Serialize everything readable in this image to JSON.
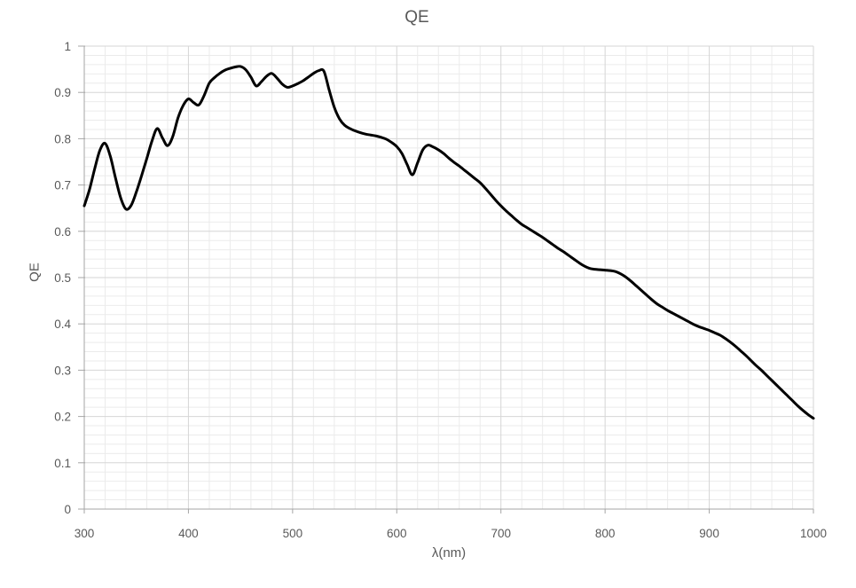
{
  "chart": {
    "title": "QE",
    "x_axis_label": "λ(nm)",
    "y_axis_label": "QE"
  },
  "colors": {
    "background": "#ffffff",
    "line": "#000000",
    "major_grid": "#d6d6d6",
    "minor_grid": "#ebebeb",
    "axis": "#a6a6a6",
    "text": "#595959"
  },
  "chart_data": {
    "type": "line",
    "title": "QE",
    "xlabel": "λ(nm)",
    "ylabel": "QE",
    "xlim": [
      300,
      1000
    ],
    "ylim": [
      0,
      1
    ],
    "grid": "major+minor",
    "legend": "none",
    "x_major_tick_values": [
      300,
      400,
      500,
      600,
      700,
      800,
      900,
      1000
    ],
    "x_major_tick_labels": [
      "300",
      "400",
      "500",
      "600",
      "700",
      "800",
      "900",
      "1000"
    ],
    "x_minor_step": 20,
    "y_major_tick_values": [
      0,
      0.1,
      0.2,
      0.3,
      0.4,
      0.5,
      0.6,
      0.7,
      0.8,
      0.9,
      1
    ],
    "y_major_tick_labels": [
      "0",
      "0.1",
      "0.2",
      "0.3",
      "0.4",
      "0.5",
      "0.6",
      "0.7",
      "0.8",
      "0.9",
      "1"
    ],
    "y_minor_step": 0.02,
    "series": [
      {
        "name": "QE",
        "points": [
          [
            300,
            0.655
          ],
          [
            305,
            0.69
          ],
          [
            310,
            0.735
          ],
          [
            315,
            0.775
          ],
          [
            320,
            0.79
          ],
          [
            325,
            0.762
          ],
          [
            330,
            0.715
          ],
          [
            335,
            0.672
          ],
          [
            340,
            0.648
          ],
          [
            345,
            0.656
          ],
          [
            350,
            0.685
          ],
          [
            355,
            0.72
          ],
          [
            360,
            0.757
          ],
          [
            365,
            0.795
          ],
          [
            370,
            0.822
          ],
          [
            375,
            0.802
          ],
          [
            380,
            0.785
          ],
          [
            385,
            0.805
          ],
          [
            390,
            0.845
          ],
          [
            395,
            0.872
          ],
          [
            400,
            0.886
          ],
          [
            405,
            0.878
          ],
          [
            410,
            0.873
          ],
          [
            415,
            0.893
          ],
          [
            420,
            0.92
          ],
          [
            425,
            0.932
          ],
          [
            430,
            0.941
          ],
          [
            435,
            0.948
          ],
          [
            440,
            0.952
          ],
          [
            445,
            0.955
          ],
          [
            450,
            0.956
          ],
          [
            455,
            0.949
          ],
          [
            460,
            0.933
          ],
          [
            465,
            0.914
          ],
          [
            470,
            0.923
          ],
          [
            475,
            0.935
          ],
          [
            480,
            0.941
          ],
          [
            485,
            0.931
          ],
          [
            490,
            0.918
          ],
          [
            495,
            0.911
          ],
          [
            500,
            0.914
          ],
          [
            505,
            0.919
          ],
          [
            510,
            0.925
          ],
          [
            515,
            0.933
          ],
          [
            520,
            0.941
          ],
          [
            525,
            0.947
          ],
          [
            530,
            0.946
          ],
          [
            535,
            0.906
          ],
          [
            540,
            0.868
          ],
          [
            545,
            0.843
          ],
          [
            550,
            0.829
          ],
          [
            555,
            0.822
          ],
          [
            560,
            0.817
          ],
          [
            565,
            0.813
          ],
          [
            570,
            0.81
          ],
          [
            575,
            0.808
          ],
          [
            580,
            0.806
          ],
          [
            585,
            0.803
          ],
          [
            590,
            0.799
          ],
          [
            595,
            0.792
          ],
          [
            600,
            0.783
          ],
          [
            605,
            0.768
          ],
          [
            610,
            0.744
          ],
          [
            615,
            0.722
          ],
          [
            620,
            0.748
          ],
          [
            625,
            0.776
          ],
          [
            630,
            0.786
          ],
          [
            635,
            0.782
          ],
          [
            640,
            0.776
          ],
          [
            645,
            0.768
          ],
          [
            650,
            0.758
          ],
          [
            655,
            0.749
          ],
          [
            660,
            0.741
          ],
          [
            665,
            0.732
          ],
          [
            670,
            0.723
          ],
          [
            675,
            0.714
          ],
          [
            680,
            0.705
          ],
          [
            685,
            0.693
          ],
          [
            690,
            0.68
          ],
          [
            695,
            0.667
          ],
          [
            700,
            0.655
          ],
          [
            705,
            0.644
          ],
          [
            710,
            0.634
          ],
          [
            715,
            0.624
          ],
          [
            720,
            0.615
          ],
          [
            725,
            0.608
          ],
          [
            730,
            0.601
          ],
          [
            735,
            0.594
          ],
          [
            740,
            0.587
          ],
          [
            745,
            0.579
          ],
          [
            750,
            0.571
          ],
          [
            755,
            0.563
          ],
          [
            760,
            0.556
          ],
          [
            765,
            0.548
          ],
          [
            770,
            0.54
          ],
          [
            775,
            0.532
          ],
          [
            780,
            0.525
          ],
          [
            785,
            0.52
          ],
          [
            790,
            0.518
          ],
          [
            795,
            0.517
          ],
          [
            800,
            0.516
          ],
          [
            805,
            0.515
          ],
          [
            810,
            0.513
          ],
          [
            815,
            0.508
          ],
          [
            820,
            0.501
          ],
          [
            825,
            0.492
          ],
          [
            830,
            0.482
          ],
          [
            835,
            0.472
          ],
          [
            840,
            0.462
          ],
          [
            845,
            0.452
          ],
          [
            850,
            0.443
          ],
          [
            855,
            0.436
          ],
          [
            860,
            0.429
          ],
          [
            865,
            0.423
          ],
          [
            870,
            0.417
          ],
          [
            875,
            0.411
          ],
          [
            880,
            0.405
          ],
          [
            885,
            0.399
          ],
          [
            890,
            0.394
          ],
          [
            895,
            0.39
          ],
          [
            900,
            0.386
          ],
          [
            905,
            0.381
          ],
          [
            910,
            0.376
          ],
          [
            915,
            0.369
          ],
          [
            920,
            0.361
          ],
          [
            925,
            0.352
          ],
          [
            930,
            0.342
          ],
          [
            935,
            0.332
          ],
          [
            940,
            0.321
          ],
          [
            945,
            0.31
          ],
          [
            950,
            0.3
          ],
          [
            955,
            0.289
          ],
          [
            960,
            0.278
          ],
          [
            965,
            0.267
          ],
          [
            970,
            0.256
          ],
          [
            975,
            0.245
          ],
          [
            980,
            0.234
          ],
          [
            985,
            0.223
          ],
          [
            990,
            0.213
          ],
          [
            995,
            0.204
          ],
          [
            1000,
            0.196
          ]
        ]
      }
    ]
  }
}
